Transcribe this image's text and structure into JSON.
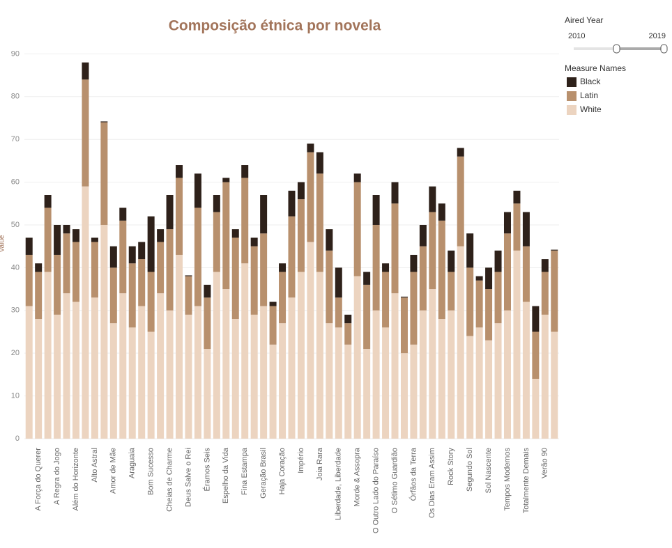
{
  "chart_data": {
    "type": "stacked_bar",
    "title": "Composição étnica por novela",
    "y_label": "Value",
    "categories": [
      null,
      "A Força do Querer",
      null,
      "A Regra do Jogo",
      null,
      "Além do Horizonte",
      null,
      "Alto Astral",
      null,
      "Amor de Mãe",
      null,
      "Araguaia",
      null,
      "Bom Sucesso",
      null,
      "Cheias de Charme",
      null,
      "Deus Salve o Rei",
      null,
      "Éramos Seis",
      null,
      "Espelho da Vida",
      null,
      "Fina Estampa",
      null,
      "Geração Brasil",
      null,
      "Haja Coração",
      null,
      "Império",
      null,
      "Joia Rara",
      null,
      "Liberdade, Liberdade",
      null,
      "Morde & Assopra",
      null,
      "O Outro Lado do Paraíso",
      null,
      "O Sétimo Guardião",
      null,
      "Órfãos da Terra",
      null,
      "Os Dias Eram Assim",
      null,
      "Rock Story",
      null,
      "Segundo Sol",
      null,
      "Sol Nascente",
      null,
      "Tempos Modernos",
      null,
      "Totalmente Demais",
      null,
      "Verão 90",
      null
    ],
    "series": [
      {
        "name": "Black",
        "color": "#2e211a",
        "values": [
          4,
          2,
          3,
          7,
          2,
          3,
          4,
          1,
          0.2,
          5,
          3,
          4,
          4,
          13,
          3,
          8,
          3,
          0.2,
          8,
          3,
          4,
          1,
          2,
          3,
          2,
          9,
          1,
          2,
          6,
          4,
          2,
          5,
          5,
          7,
          2,
          2,
          3,
          7,
          2,
          5,
          0.2,
          4,
          5,
          6,
          4,
          5,
          2,
          8,
          1,
          5,
          5,
          5,
          3,
          8,
          6,
          3,
          0.2
        ]
      },
      {
        "name": "Latin",
        "color": "#b8906d",
        "values": [
          12,
          11,
          15,
          14,
          14,
          14,
          25,
          13,
          24,
          13,
          17,
          15,
          11,
          14,
          12,
          19,
          18,
          9,
          23,
          12,
          14,
          25,
          19,
          20,
          16,
          17,
          9,
          12,
          19,
          17,
          21,
          23,
          17,
          7,
          5,
          22,
          15,
          20,
          13,
          21,
          13,
          17,
          15,
          18,
          23,
          9,
          21,
          16,
          11,
          12,
          12,
          18,
          11,
          13,
          11,
          10,
          19
        ]
      },
      {
        "name": "White",
        "color": "#ecd4c0",
        "values": [
          31,
          28,
          39,
          29,
          34,
          32,
          59,
          33,
          50,
          27,
          34,
          26,
          31,
          25,
          34,
          30,
          43,
          29,
          31,
          21,
          39,
          35,
          28,
          41,
          29,
          31,
          22,
          27,
          33,
          39,
          46,
          39,
          27,
          26,
          22,
          38,
          21,
          30,
          26,
          34,
          20,
          22,
          30,
          35,
          28,
          30,
          45,
          24,
          26,
          23,
          27,
          30,
          44,
          32,
          14,
          29,
          25
        ]
      }
    ],
    "ylim": [
      -1,
      95
    ],
    "yticks": [
      0,
      10,
      20,
      30,
      40,
      50,
      60,
      70,
      80,
      90
    ],
    "grid": true,
    "legend_title": "Measure Names",
    "filter": {
      "title": "Aired Year",
      "min": 2010,
      "max": 2019
    }
  }
}
